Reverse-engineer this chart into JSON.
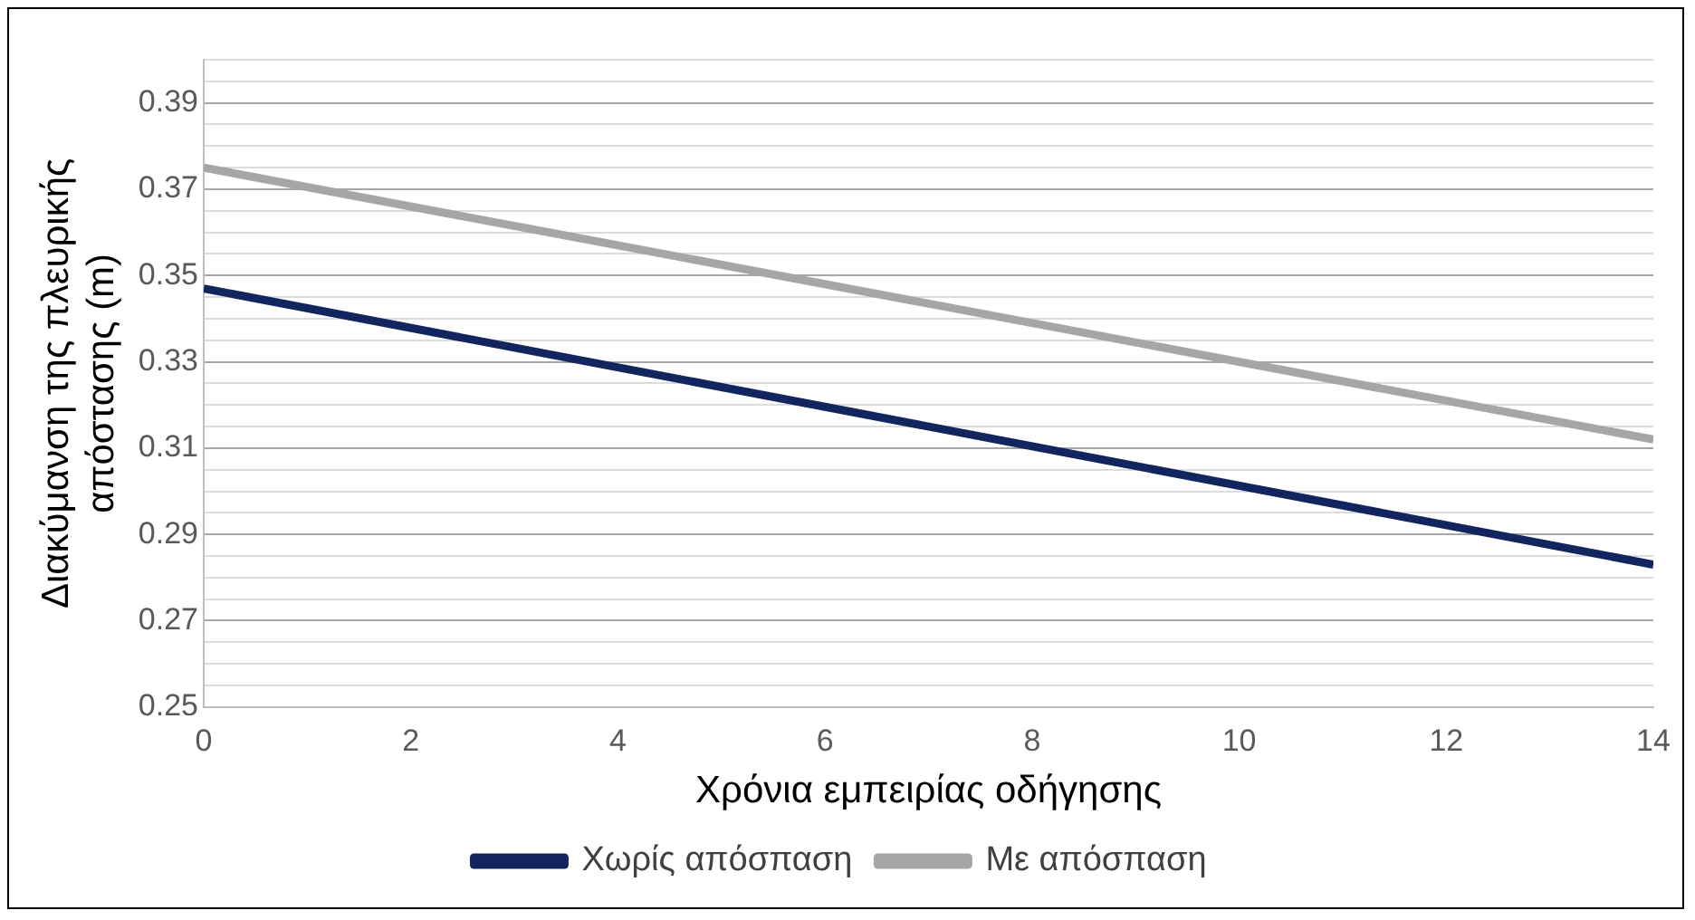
{
  "chart_data": {
    "type": "line",
    "xlabel": "Χρόνια εμπειρίας οδήγησης",
    "ylabel": "Διακύμανση της πλευρικής απόστασης (m)",
    "x": [
      0,
      14
    ],
    "series": [
      {
        "name": "Χωρίς απόσπαση",
        "color": "#13255f",
        "values": [
          0.347,
          0.283
        ]
      },
      {
        "name": "Με απόσπαση",
        "color": "#a6a6a6",
        "values": [
          0.375,
          0.312
        ]
      }
    ],
    "xlim": [
      0,
      14
    ],
    "xticks": [
      0,
      2,
      4,
      6,
      8,
      10,
      12,
      14
    ],
    "ylim": [
      0.25,
      0.4
    ],
    "yticks": [
      0.25,
      {
        "value": 0.255,
        "label": null
      },
      {
        "value": 0.26,
        "label": null
      },
      {
        "value": 0.265,
        "label": null
      },
      0.27,
      {
        "value": 0.275,
        "label": null
      },
      {
        "value": 0.28,
        "label": null
      },
      {
        "value": 0.285,
        "label": null
      },
      0.29,
      {
        "value": 0.295,
        "label": null
      },
      {
        "value": 0.3,
        "label": null
      },
      {
        "value": 0.305,
        "label": null
      },
      0.31,
      {
        "value": 0.315,
        "label": null
      },
      {
        "value": 0.32,
        "label": null
      },
      {
        "value": 0.325,
        "label": null
      },
      0.33,
      {
        "value": 0.335,
        "label": null
      },
      {
        "value": 0.34,
        "label": null
      },
      {
        "value": 0.345,
        "label": null
      },
      0.35,
      {
        "value": 0.355,
        "label": null
      },
      {
        "value": 0.36,
        "label": null
      },
      {
        "value": 0.365,
        "label": null
      },
      0.37,
      {
        "value": 0.375,
        "label": null
      },
      {
        "value": 0.38,
        "label": null
      },
      {
        "value": 0.385,
        "label": null
      },
      0.39,
      {
        "value": 0.395,
        "label": null
      },
      {
        "value": 0.4,
        "label": null
      }
    ],
    "grid": "y",
    "legend": "bottom",
    "marker": "none",
    "line_style": "solid"
  }
}
